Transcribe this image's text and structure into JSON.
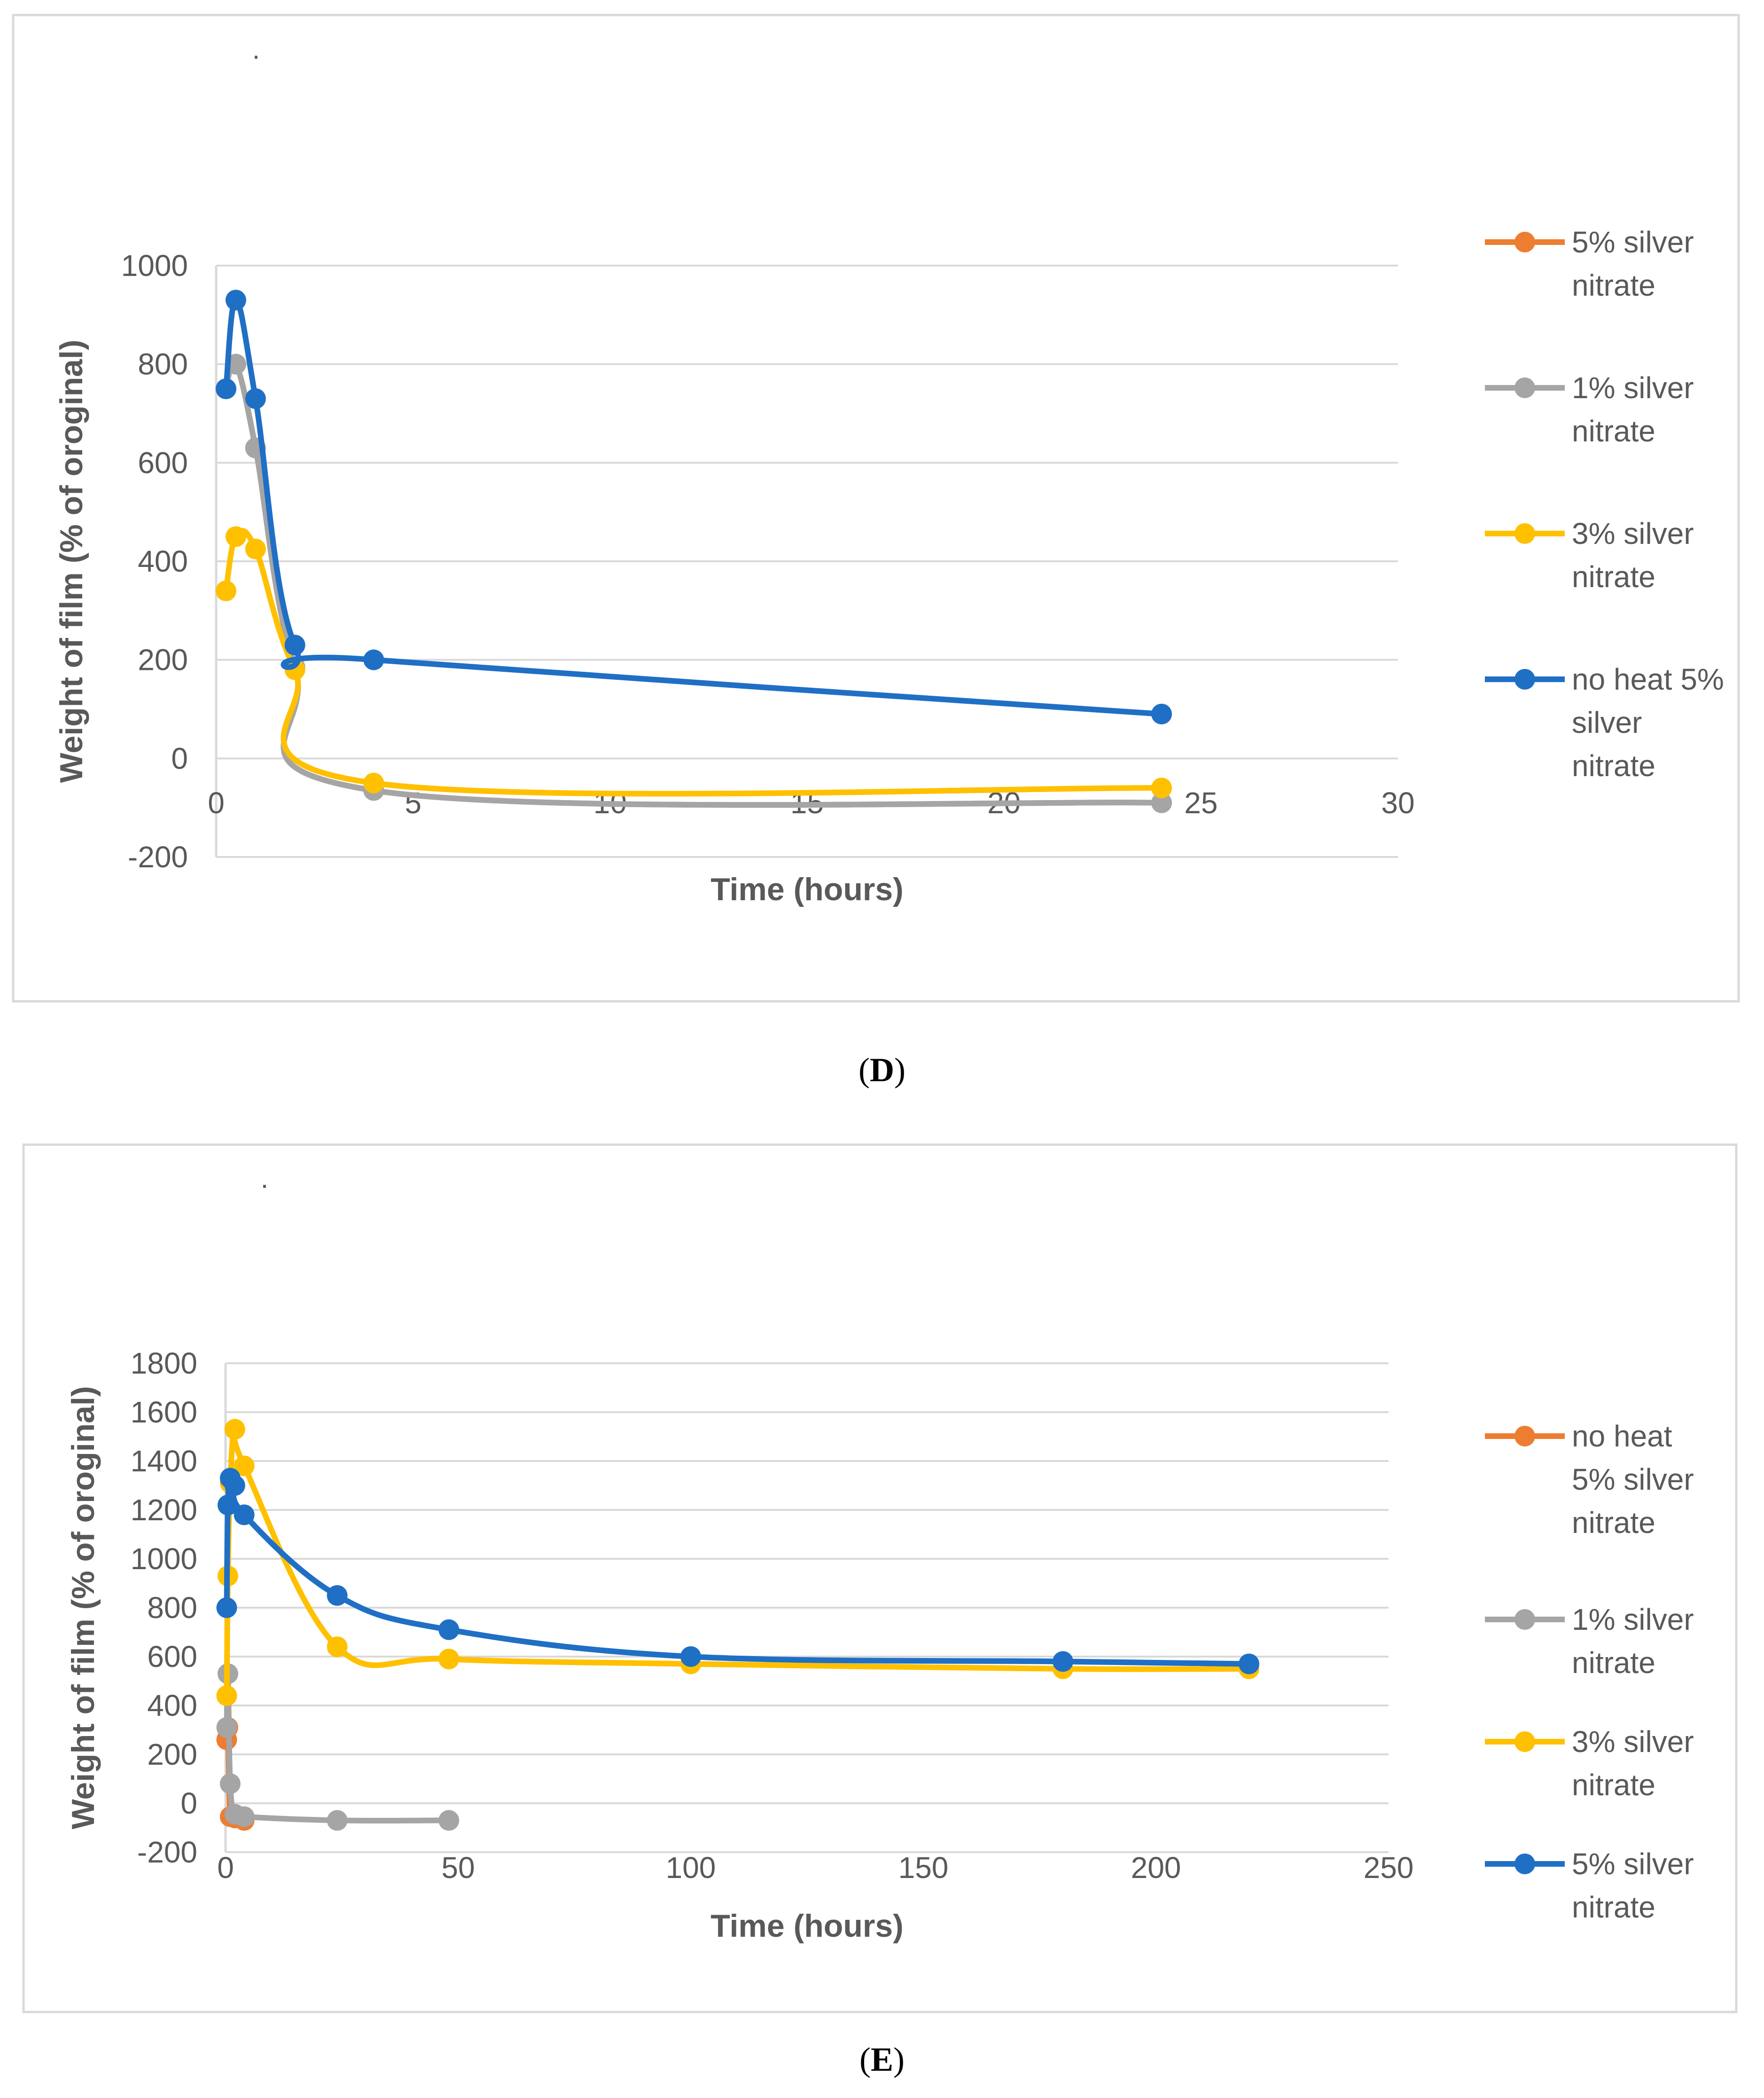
{
  "chart_data": [
    {
      "type": "line",
      "panel": "D",
      "caption_open": "(",
      "caption_letter": "D",
      "caption_close": ")",
      "dot_marker": ".",
      "xlabel": "Time (hours)",
      "ylabel": "Weight of film (% of oroginal)",
      "xlim": [
        0,
        30
      ],
      "ylim": [
        -200,
        1000
      ],
      "xticks": [
        0,
        5,
        10,
        15,
        20,
        25,
        30
      ],
      "yticks": [
        -200,
        0,
        200,
        400,
        600,
        800,
        1000
      ],
      "xtick_labels": [
        "0",
        "5",
        "10",
        "15",
        "20",
        "25",
        "30"
      ],
      "ytick_labels": [
        "-200",
        "0",
        "200",
        "400",
        "600",
        "800",
        "1000"
      ],
      "legend_position": "right",
      "series": [
        {
          "name": "5% silver nitrate",
          "legend_lines": [
            "5% silver",
            "nitrate"
          ],
          "color": "#ED7D31",
          "x": [
            0.25,
            0.5,
            1,
            2,
            4,
            24
          ],
          "y": [
            750,
            800,
            630,
            185,
            -65,
            -90
          ]
        },
        {
          "name": "1% silver nitrate",
          "legend_lines": [
            "1% silver",
            "nitrate"
          ],
          "color": "#A5A5A5",
          "x": [
            0.25,
            0.5,
            1,
            2,
            4,
            24
          ],
          "y": [
            750,
            800,
            630,
            185,
            -65,
            -90
          ]
        },
        {
          "name": "3% silver nitrate",
          "legend_lines": [
            "3% silver",
            "nitrate"
          ],
          "color": "#FFC000",
          "x": [
            0.25,
            0.5,
            1,
            2,
            4,
            24
          ],
          "y": [
            340,
            450,
            425,
            180,
            -50,
            -60
          ]
        },
        {
          "name": "no heat 5% silver nitrate",
          "legend_lines": [
            "no heat 5%",
            "silver",
            "nitrate"
          ],
          "color": "#1F6FC5",
          "x": [
            0.25,
            0.5,
            1,
            2,
            4,
            24
          ],
          "y": [
            750,
            930,
            730,
            230,
            200,
            90
          ]
        }
      ]
    },
    {
      "type": "line",
      "panel": "E",
      "caption_open": "(",
      "caption_letter": "E",
      "caption_close": ")",
      "dot_marker": ".",
      "xlabel": "Time (hours)",
      "ylabel": "Weight of film (% of oroginal)",
      "xlim": [
        0,
        250
      ],
      "ylim": [
        -200,
        1800
      ],
      "xticks": [
        0,
        50,
        100,
        150,
        200,
        250
      ],
      "yticks": [
        -200,
        0,
        200,
        400,
        600,
        800,
        1000,
        1200,
        1400,
        1600,
        1800
      ],
      "xtick_labels": [
        "0",
        "50",
        "100",
        "150",
        "200",
        "250"
      ],
      "ytick_labels": [
        "-200",
        "0",
        "200",
        "400",
        "600",
        "800",
        "1000",
        "1200",
        "1400",
        "1600",
        "1800"
      ],
      "legend_position": "right",
      "series": [
        {
          "name": "no heat 5% silver nitrate",
          "legend_lines": [
            "no heat",
            "5% silver",
            "nitrate"
          ],
          "color": "#ED7D31",
          "x": [
            0.25,
            0.5,
            1,
            2,
            4
          ],
          "y": [
            260,
            310,
            -55,
            -60,
            -70
          ]
        },
        {
          "name": "1% silver nitrate",
          "legend_lines": [
            "1% silver",
            "nitrate"
          ],
          "color": "#A5A5A5",
          "x": [
            0.25,
            0.5,
            1,
            2,
            4,
            24,
            48
          ],
          "y": [
            310,
            530,
            80,
            -45,
            -55,
            -70,
            -70
          ]
        },
        {
          "name": "3% silver nitrate",
          "legend_lines": [
            "3% silver",
            "nitrate"
          ],
          "color": "#FFC000",
          "x": [
            0.25,
            0.5,
            1,
            2,
            4,
            24,
            48,
            100,
            180,
            220
          ],
          "y": [
            440,
            930,
            1310,
            1530,
            1380,
            640,
            590,
            570,
            550,
            550
          ]
        },
        {
          "name": "5% silver nitrate",
          "legend_lines": [
            "5% silver",
            "nitrate"
          ],
          "color": "#1F6FC5",
          "x": [
            0.25,
            0.5,
            1,
            2,
            4,
            24,
            48,
            100,
            180,
            220
          ],
          "y": [
            800,
            1220,
            1330,
            1300,
            1180,
            850,
            710,
            600,
            580,
            570
          ]
        }
      ]
    }
  ]
}
